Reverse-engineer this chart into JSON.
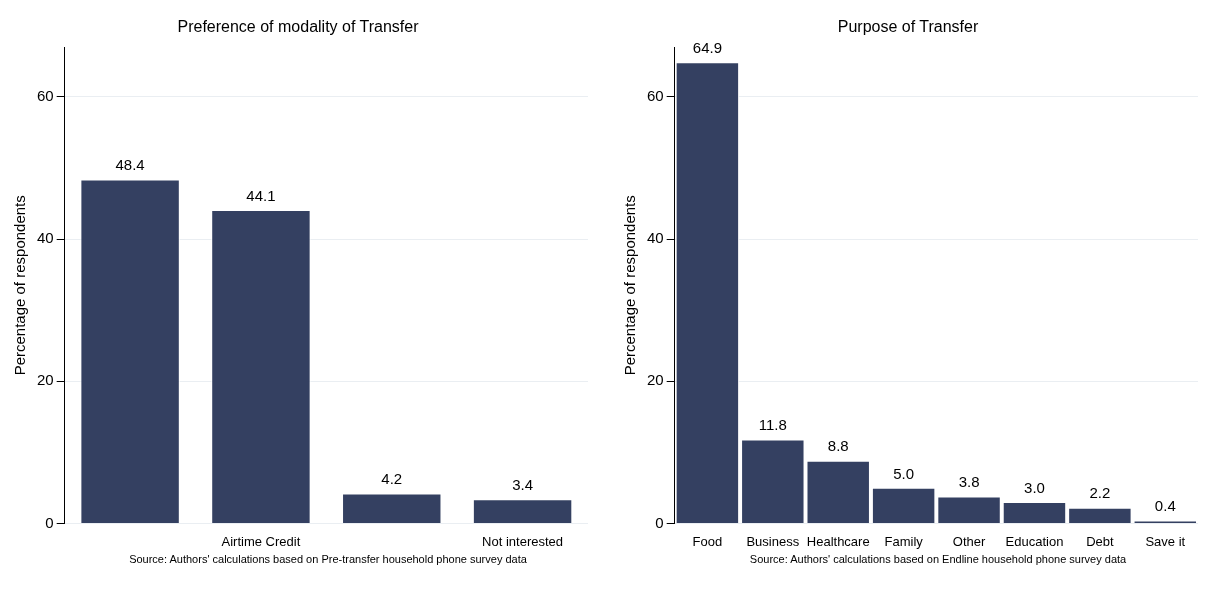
{
  "chart_data": [
    {
      "type": "bar",
      "title": "Preference of modality of Transfer",
      "ylabel": "Percentage of respondents",
      "categories": [
        null,
        "Airtime Credit",
        null,
        "Not interested"
      ],
      "series": [
        {
          "color": "#344061",
          "values": [
            48.4,
            44.1,
            4.2,
            3.4
          ],
          "value_labels": [
            "48.4",
            "44.1",
            "4.2",
            "3.4"
          ]
        }
      ],
      "ylim": [
        0,
        67
      ],
      "yticks": [
        0,
        20,
        40,
        60
      ],
      "grid": "y",
      "legend": false,
      "annotations": [
        "Source: Authors' calculations based on Pre-transfer household phone survey data"
      ]
    },
    {
      "type": "bar",
      "title": "Purpose of Transfer",
      "ylabel": "Percentage of respondents",
      "categories": [
        "Food",
        "Business",
        "Healthcare",
        "Family",
        "Other",
        "Education",
        "Debt",
        "Save it"
      ],
      "series": [
        {
          "color": "#344061",
          "values": [
            64.9,
            11.8,
            8.8,
            5.0,
            3.8,
            3.0,
            2.2,
            0.4
          ],
          "value_labels": [
            "64.9",
            "11.8",
            "8.8",
            "5.0",
            "3.8",
            "3.0",
            "2.2",
            "0.4"
          ]
        }
      ],
      "ylim": [
        0,
        67
      ],
      "yticks": [
        0,
        20,
        40,
        60
      ],
      "grid": "y",
      "legend": false,
      "annotations": [
        "Source: Authors' calculations based on Endline household phone survey data"
      ]
    }
  ]
}
